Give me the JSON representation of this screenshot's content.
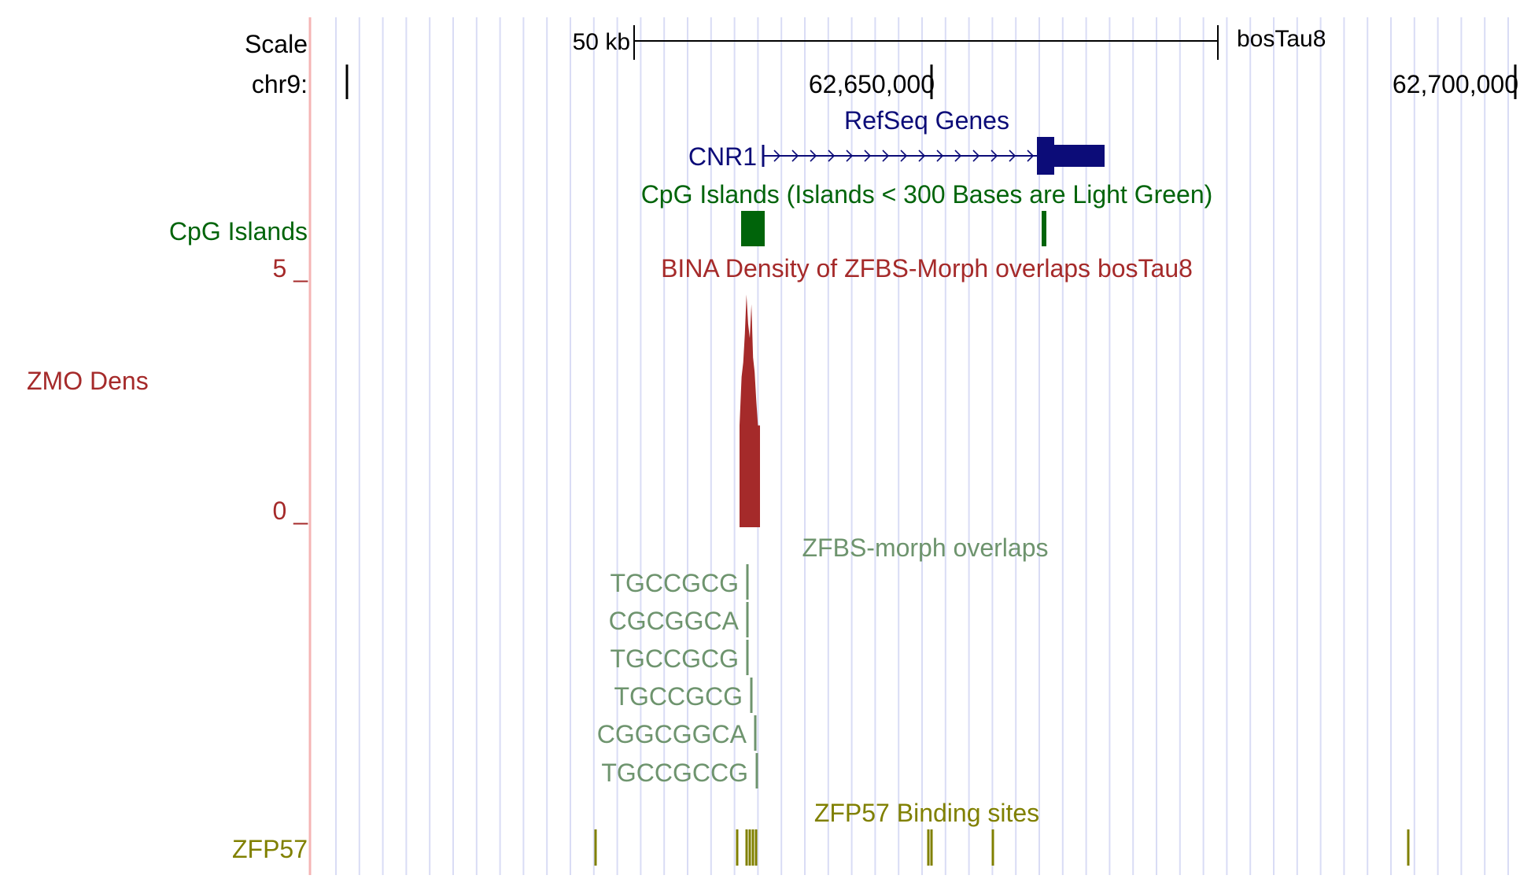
{
  "colors": {
    "grid": "#d9dcf5",
    "divider": "#f5b5b5",
    "ruler": "#000000",
    "refseq": "#0c0c78",
    "cpg": "#00640a",
    "zmo": "#a52a2a",
    "zfbs": "#6e946e",
    "zfp57": "#808000"
  },
  "ruler": {
    "scale_label": "Scale",
    "scale_value": "50 kb",
    "assembly": "bosTau8",
    "chrom_label": "chr9:",
    "tick_labels": [
      "62,650,000",
      "62,700,000"
    ]
  },
  "tracks": {
    "refseq": {
      "title": "RefSeq Genes",
      "gene_name": "CNR1"
    },
    "cpg": {
      "title": "CpG Islands (Islands < 300 Bases are Light Green)",
      "side_label": "CpG Islands"
    },
    "zmo": {
      "title": "BINA Density of ZFBS-Morph overlaps bosTau8",
      "side_label": "ZMO Dens",
      "axis_max": "5 _",
      "axis_min": "0 _",
      "density_profile": [
        {
          "pos": 0.0,
          "value": 2.1
        },
        {
          "pos": 0.1,
          "value": 3.1
        },
        {
          "pos": 0.18,
          "value": 3.4
        },
        {
          "pos": 0.26,
          "value": 4.0
        },
        {
          "pos": 0.34,
          "value": 4.8
        },
        {
          "pos": 0.42,
          "value": 4.2
        },
        {
          "pos": 0.5,
          "value": 3.9
        },
        {
          "pos": 0.58,
          "value": 4.6
        },
        {
          "pos": 0.66,
          "value": 3.5
        },
        {
          "pos": 0.74,
          "value": 3.2
        },
        {
          "pos": 0.82,
          "value": 2.6
        },
        {
          "pos": 0.9,
          "value": 2.1
        },
        {
          "pos": 1.0,
          "value": 2.1
        }
      ]
    },
    "zfbs": {
      "title": "ZFBS-morph overlaps",
      "items": [
        "TGCCGCG",
        "CGCGGCA",
        "TGCCGCG",
        "TGCCGCG",
        "CGGCGGCA",
        "TGCCGCCG"
      ]
    },
    "zfp57": {
      "title": "ZFP57 Binding sites",
      "side_label": "ZFP57"
    }
  }
}
